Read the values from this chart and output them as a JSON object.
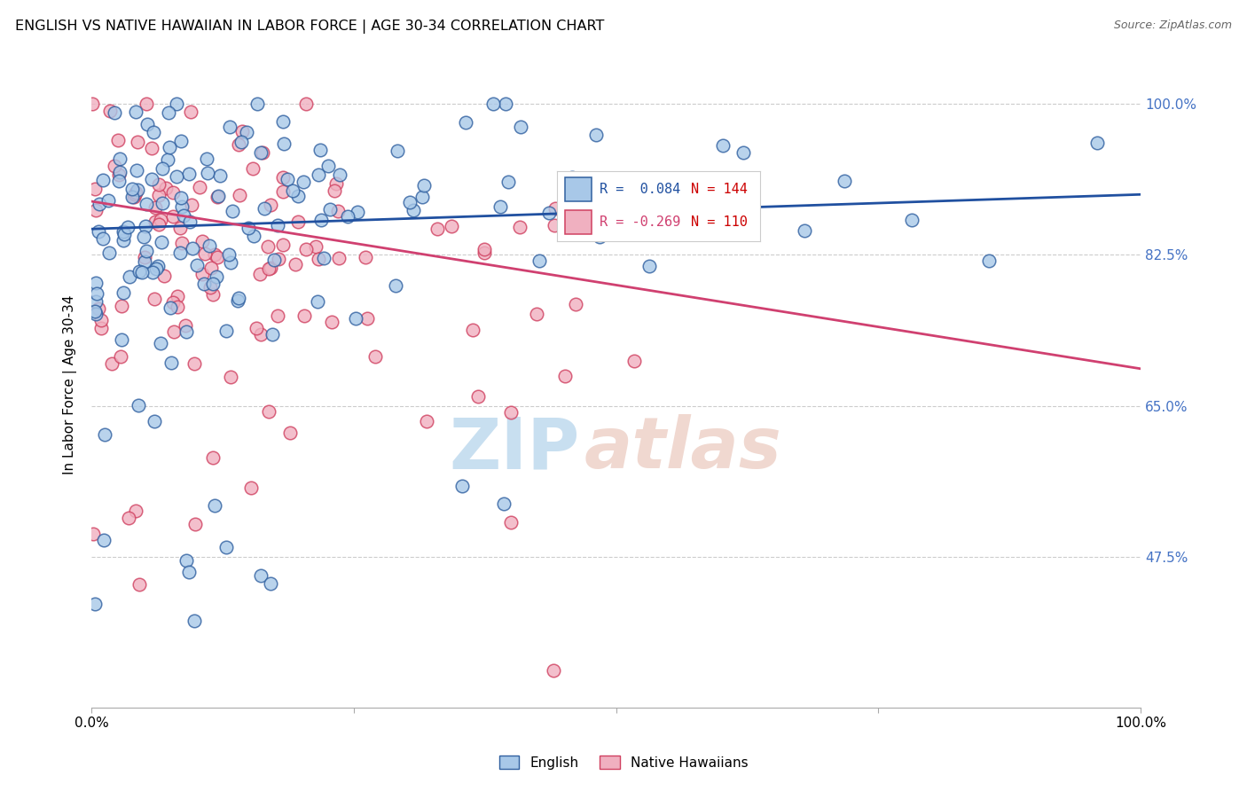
{
  "title": "ENGLISH VS NATIVE HAWAIIAN IN LABOR FORCE | AGE 30-34 CORRELATION CHART",
  "source": "Source: ZipAtlas.com",
  "ylabel": "In Labor Force | Age 30-34",
  "ytick_labels": [
    "100.0%",
    "82.5%",
    "65.0%",
    "47.5%"
  ],
  "ytick_values": [
    1.0,
    0.825,
    0.65,
    0.475
  ],
  "xlim": [
    0.0,
    1.0
  ],
  "ylim": [
    0.3,
    1.05
  ],
  "blue_fill": "#a8c8e8",
  "blue_edge": "#3060a0",
  "pink_fill": "#f0b0c0",
  "pink_edge": "#d04060",
  "blue_line": "#2050a0",
  "pink_line": "#d04070",
  "legend_blue_R": "R =  0.084",
  "legend_blue_N": "N = 144",
  "legend_pink_R": "R = -0.269",
  "legend_pink_N": "N = 110",
  "ytick_color": "#4472c4",
  "grid_color": "#cccccc",
  "watermark_zip_color": "#c8dff0",
  "watermark_atlas_color": "#f0d8d0"
}
